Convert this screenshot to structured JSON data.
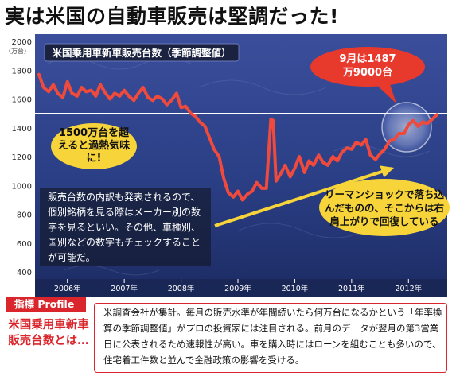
{
  "headline": "実は米国の自動車販売は堅調だった!",
  "chart_data": {
    "type": "line",
    "title": "米国乗用車新車販売台数（季節調整値）",
    "y_unit": "（万台）",
    "yticks": [
      "2000",
      "1800",
      "1600",
      "1400",
      "1200",
      "1000",
      "800",
      "600",
      "400"
    ],
    "ylim": [
      400,
      2000
    ],
    "xlim": [
      2005.5,
      2012.5
    ],
    "x_tick_values": [
      2006,
      2007,
      2008,
      2009,
      2010,
      2011,
      2012
    ],
    "x_tick_labels": [
      "2006年",
      "2007年",
      "2008年",
      "2009年",
      "2010年",
      "2011年",
      "2012年"
    ],
    "reference_line": 1500,
    "grid": false,
    "x": [
      2005.5,
      2005.58,
      2005.67,
      2005.75,
      2005.83,
      2005.92,
      2006.0,
      2006.08,
      2006.17,
      2006.25,
      2006.33,
      2006.42,
      2006.5,
      2006.58,
      2006.67,
      2006.75,
      2006.83,
      2006.92,
      2007.0,
      2007.08,
      2007.17,
      2007.25,
      2007.33,
      2007.42,
      2007.5,
      2007.58,
      2007.67,
      2007.75,
      2007.83,
      2007.92,
      2008.0,
      2008.08,
      2008.17,
      2008.25,
      2008.33,
      2008.42,
      2008.5,
      2008.58,
      2008.67,
      2008.75,
      2008.83,
      2008.92,
      2009.0,
      2009.08,
      2009.17,
      2009.25,
      2009.33,
      2009.42,
      2009.5,
      2009.58,
      2009.62,
      2009.67,
      2009.75,
      2009.83,
      2009.92,
      2010.0,
      2010.08,
      2010.17,
      2010.25,
      2010.33,
      2010.42,
      2010.5,
      2010.58,
      2010.67,
      2010.75,
      2010.83,
      2010.92,
      2011.0,
      2011.08,
      2011.17,
      2011.25,
      2011.33,
      2011.42,
      2011.5,
      2011.58,
      2011.67,
      2011.75,
      2011.83,
      2011.92,
      2012.0,
      2012.08,
      2012.17,
      2012.25,
      2012.33,
      2012.42,
      2012.5
    ],
    "series": [
      {
        "values": [
          1770,
          1680,
          1650,
          1700,
          1640,
          1610,
          1720,
          1640,
          1620,
          1680,
          1650,
          1660,
          1620,
          1700,
          1640,
          1600,
          1640,
          1620,
          1660,
          1620,
          1590,
          1640,
          1680,
          1610,
          1590,
          1620,
          1600,
          1560,
          1590,
          1640,
          1540,
          1550,
          1500,
          1480,
          1440,
          1410,
          1330,
          1250,
          1200,
          1050,
          950,
          920,
          960,
          900,
          940,
          960,
          1020,
          980,
          980,
          1460,
          1450,
          1030,
          1080,
          1140,
          1060,
          1120,
          1200,
          1090,
          1170,
          1140,
          1210,
          1160,
          1140,
          1200,
          1170,
          1230,
          1260,
          1250,
          1300,
          1280,
          1320,
          1210,
          1180,
          1220,
          1250,
          1310,
          1320,
          1360,
          1360,
          1420,
          1450,
          1410,
          1440,
          1430,
          1460,
          1490
        ]
      }
    ]
  },
  "callouts": {
    "overheat": "1500万台を超えると過熱気味に!",
    "september": "9月は1487万9000台",
    "lehman": "リーマンショックで落ち込んだものの、そこからは右肩上がりで回復している"
  },
  "note": "販売台数の内訳も発表されるので、個別銘柄を見る際はメーカー別の数字を見るといい。その他、車種別、国別などの数字もチェックすることが可能だ。",
  "profile": {
    "tab": "指標 Profile",
    "term": "米国乗用車新車販売台数とは…",
    "description": "米調査会社が集計。毎月の販売水準が年間続いたら何万台になるかという「年率換算の季節調整値」がプロの投資家には注目される。前月のデータが翌月の第3営業日に公表されるため速報性が高い。車を購入時にはローンを組むことも多いので、住宅着工件数と並んで金融政策の影響を受ける。"
  },
  "colors": {
    "line": "#ef4a3c",
    "panel": "#2d3f8a",
    "accent_red": "#d9252b",
    "callout_yellow": "#f6d43a",
    "reference_line": "#ffffff"
  }
}
